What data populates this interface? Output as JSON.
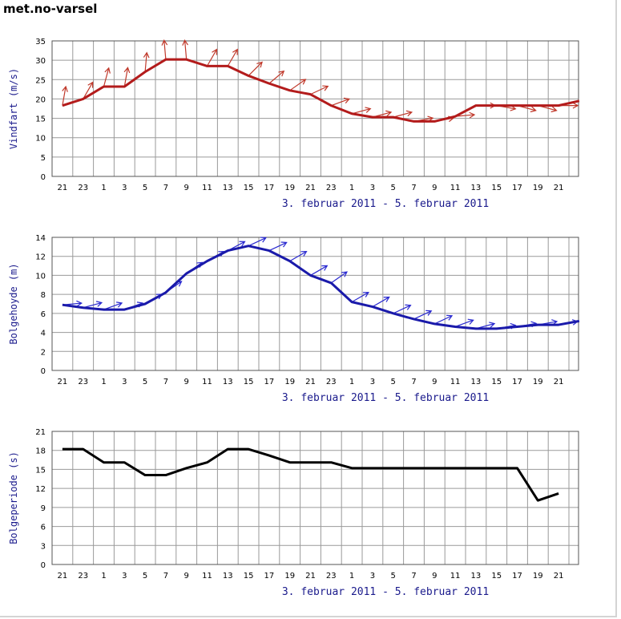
{
  "title": "met.no-varsel",
  "chart_data": [
    {
      "type": "line",
      "id": "wind",
      "ylabel": "Vindfart (m/s)",
      "date_range": "3. februar 2011 -  5. februar 2011",
      "x_tick_labels": [
        "21",
        "23",
        "1",
        "3",
        "5",
        "7",
        "9",
        "11",
        "13",
        "15",
        "17",
        "19",
        "21",
        "23",
        "1",
        "3",
        "5",
        "7",
        "9",
        "11",
        "13",
        "15",
        "17",
        "19",
        "21"
      ],
      "ylim": [
        0,
        35
      ],
      "y_ticks": [
        0,
        5,
        10,
        15,
        20,
        25,
        30,
        35
      ],
      "grid": true,
      "color": "#b31b1b",
      "arrow_color": "#c0392b",
      "series": [
        {
          "name": "Vindfart",
          "x": [
            0,
            1,
            2,
            3,
            4,
            5,
            6,
            7,
            8,
            9,
            10,
            11,
            12,
            13,
            14,
            15,
            16,
            17,
            18,
            19,
            20,
            21,
            22,
            23,
            24,
            25
          ],
          "values": [
            18.3,
            20,
            23.2,
            23.2,
            27,
            30.2,
            30.2,
            28.5,
            28.5,
            26,
            24,
            22.2,
            21.2,
            18.3,
            16.2,
            15.3,
            15.3,
            14.2,
            14.2,
            15.5,
            18.3,
            18.3,
            18.3,
            18.3,
            18.3,
            19.5
          ]
        }
      ],
      "arrows": {
        "x": [
          0,
          1,
          2,
          3,
          4,
          5,
          6,
          7,
          8,
          9,
          10,
          11,
          12,
          13,
          14,
          15,
          16,
          17,
          18,
          19,
          20,
          21,
          22,
          23,
          24
        ],
        "angle_deg": [
          80,
          60,
          75,
          80,
          85,
          95,
          95,
          60,
          60,
          45,
          40,
          35,
          25,
          20,
          15,
          15,
          15,
          10,
          10,
          5,
          0,
          -10,
          -15,
          -15,
          0
        ]
      }
    },
    {
      "type": "line",
      "id": "wave-height",
      "ylabel": "Bolgehoyde (m)",
      "date_range": "3. februar 2011 -  5. februar 2011",
      "x_tick_labels": [
        "21",
        "23",
        "1",
        "3",
        "5",
        "7",
        "9",
        "11",
        "13",
        "15",
        "17",
        "19",
        "21",
        "23",
        "1",
        "3",
        "5",
        "7",
        "9",
        "11",
        "13",
        "15",
        "17",
        "19",
        "21"
      ],
      "ylim": [
        0,
        14
      ],
      "y_ticks": [
        0,
        2,
        4,
        6,
        8,
        10,
        12,
        14
      ],
      "grid": true,
      "color": "#1a1aaa",
      "arrow_color": "#2a2ad0",
      "series": [
        {
          "name": "Bolgehoyde",
          "x": [
            0,
            1,
            2,
            3,
            4,
            5,
            6,
            7,
            8,
            9,
            10,
            11,
            12,
            13,
            14,
            15,
            16,
            17,
            18,
            19,
            20,
            21,
            22,
            23,
            24,
            25
          ],
          "values": [
            6.9,
            6.6,
            6.4,
            6.4,
            7,
            8.2,
            10.2,
            11.5,
            12.6,
            13.1,
            12.6,
            11.5,
            10,
            9.2,
            7.2,
            6.7,
            6,
            5.4,
            4.9,
            4.6,
            4.4,
            4.4,
            4.6,
            4.8,
            4.8,
            5.2
          ]
        }
      ],
      "arrows": {
        "x": [
          0,
          1,
          2,
          3,
          4,
          5,
          6,
          7,
          8,
          9,
          10,
          11,
          12,
          13,
          14,
          15,
          16,
          17,
          18,
          19,
          20,
          21,
          22,
          23,
          24
        ],
        "angle_deg": [
          5,
          15,
          20,
          20,
          30,
          35,
          35,
          30,
          28,
          25,
          25,
          30,
          30,
          35,
          30,
          30,
          25,
          25,
          25,
          20,
          15,
          10,
          10,
          10,
          10
        ]
      }
    },
    {
      "type": "line",
      "id": "wave-period",
      "ylabel": "Bolgeperiode (s)",
      "date_range": "3. februar 2011 -  5. februar 2011",
      "x_tick_labels": [
        "21",
        "23",
        "1",
        "3",
        "5",
        "7",
        "9",
        "11",
        "13",
        "15",
        "17",
        "19",
        "21",
        "23",
        "1",
        "3",
        "5",
        "7",
        "9",
        "11",
        "13",
        "15",
        "17",
        "19",
        "21"
      ],
      "ylim": [
        0,
        21
      ],
      "y_ticks": [
        0,
        3,
        6,
        9,
        12,
        15,
        18,
        21
      ],
      "grid": true,
      "color": "#000000",
      "series": [
        {
          "name": "Bolgeperiode",
          "x": [
            0,
            1,
            2,
            3,
            4,
            5,
            6,
            7,
            8,
            9,
            10,
            11,
            12,
            13,
            14,
            15,
            16,
            17,
            18,
            19,
            20,
            21,
            22,
            23,
            24
          ],
          "values": [
            18.2,
            18.2,
            16.1,
            16.1,
            14.1,
            14.1,
            15.2,
            16.1,
            18.2,
            18.2,
            17.2,
            16.1,
            16.1,
            16.1,
            15.2,
            15.2,
            15.2,
            15.2,
            15.2,
            15.2,
            15.2,
            15.2,
            15.2,
            10.1,
            11.2
          ]
        }
      ]
    }
  ],
  "colors": {
    "grid": "#9a9a9a",
    "axis_text": "#000000",
    "label_text": "#1a1a8c",
    "plot_border": "#555555"
  }
}
